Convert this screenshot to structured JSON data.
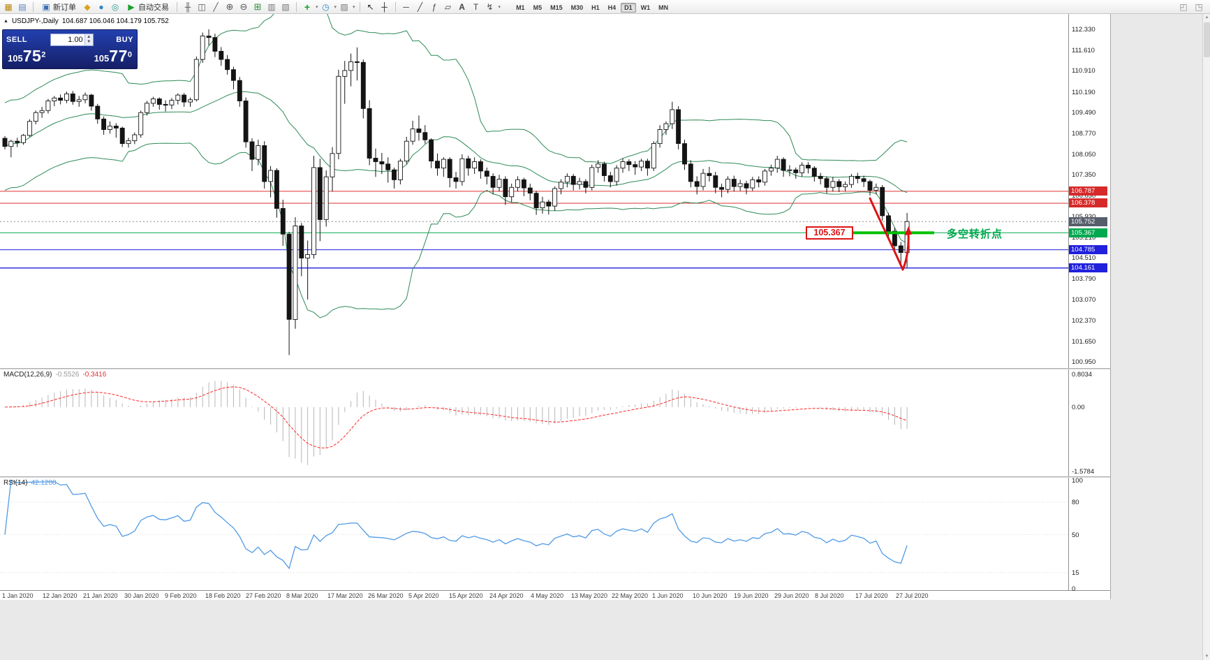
{
  "icons": {
    "new_chart": "▦",
    "profiles": "▤",
    "new_order": "▣",
    "metaeditor": "◆",
    "terminal": "●",
    "tester": "◎",
    "autotrade_play": "▶",
    "bars": "╫",
    "candles": "◫",
    "line_chart": "╱",
    "zoom_in": "⊕",
    "zoom_out": "⊖",
    "tile": "⊞",
    "indicator_list": "▥",
    "objects": "▧",
    "indicator_add": "+",
    "clock": "◷",
    "templates": "▨",
    "cursor": "↖",
    "crosshair": "┼",
    "hline": "─",
    "trendline": "╱",
    "fibonacci": "ƒ",
    "shapes": "▱",
    "text": "A",
    "label": "T",
    "arrows": "↯",
    "caret": "▾",
    "collapse": "▲",
    "win_a": "◰",
    "win_b": "◳",
    "scroll_up": "▲",
    "scroll_down": "▼"
  },
  "toolbar": {
    "new_order_label": "新订单",
    "auto_trading_label": "自动交易",
    "timeframes": [
      "M1",
      "M5",
      "M15",
      "M30",
      "H1",
      "H4",
      "D1",
      "W1",
      "MN"
    ],
    "active_timeframe": "D1"
  },
  "chart": {
    "symbol_title": "USDJPY-,Daily",
    "title_ohlc": "104.687 106.046 104.179 105.752",
    "trade_widget": {
      "sell_label": "SELL",
      "buy_label": "BUY",
      "volume": "1.00",
      "sell_price_prefix": "105",
      "sell_price_main": "75",
      "sell_price_sup": "2",
      "buy_price_prefix": "105",
      "buy_price_main": "77",
      "buy_price_sup": "0"
    }
  },
  "chart_data": {
    "type": "candlestick",
    "symbol": "USDJPY",
    "timeframe": "Daily",
    "last_ohlc": {
      "open": 104.687,
      "high": 106.046,
      "low": 104.179,
      "close": 105.752
    },
    "y_range": [
      100.95,
      112.856
    ],
    "y_ticks": [
      "112.330",
      "111.610",
      "110.910",
      "110.190",
      "109.490",
      "108.770",
      "108.050",
      "107.350",
      "106.630",
      "105.930",
      "105.210",
      "104.510",
      "103.790",
      "103.070",
      "102.370",
      "101.650",
      "100.950"
    ],
    "x_labels": [
      "1 Jan 2020",
      "12 Jan 2020",
      "21 Jan 2020",
      "30 Jan 2020",
      "9 Feb 2020",
      "18 Feb 2020",
      "27 Feb 2020",
      "8 Mar 2020",
      "17 Mar 2020",
      "26 Mar 2020",
      "5 Apr 2020",
      "15 Apr 2020",
      "24 Apr 2020",
      "4 May 2020",
      "13 May 2020",
      "22 May 2020",
      "1 Jun 2020",
      "10 Jun 2020",
      "19 Jun 2020",
      "29 Jun 2020",
      "8 Jul 2020",
      "17 Jul 2020",
      "27 Jul 2020"
    ],
    "overlays": {
      "bollinger": {
        "period": 20,
        "deviation": 2,
        "color": "#2e8b57"
      }
    },
    "hlines": [
      {
        "price": 106.787,
        "label": "106.787",
        "color": "#e03030",
        "box": "#d62a2a",
        "style": "solid"
      },
      {
        "price": 106.378,
        "label": "106.378",
        "color": "#e03030",
        "box": "#d62a2a",
        "style": "solid"
      },
      {
        "price": 105.752,
        "label": "105.752",
        "color": "#8a8f98",
        "box": "#565d6b",
        "style": "dot"
      },
      {
        "price": 105.367,
        "label": "105.367",
        "color": "#00a84f",
        "box": "#00a84f",
        "style": "solid"
      },
      {
        "price": 104.785,
        "label": "104.785",
        "color": "#2020dd",
        "box": "#2020dd",
        "style": "solid"
      },
      {
        "price": 104.161,
        "label": "104.161",
        "color": "#2020dd",
        "box": "#2020dd",
        "style": "solid"
      }
    ],
    "annotations": {
      "pivot_tag": "105.367",
      "pivot_text": "多空转折点",
      "pivot_price": 105.367,
      "tag_color": "#dd1414",
      "text_color": "#00a84f",
      "segment_color": "#00c000",
      "arrow_color": "#dd1414"
    },
    "indicators": [
      {
        "name": "MACD",
        "label": "MACD(12,26,9)",
        "value_main": "-0.5526",
        "value_signal": "-0.3416",
        "fast": 12,
        "slow": 26,
        "signal": 9,
        "y_ticks": [
          "0.8034",
          "0.00",
          "-1.5784"
        ],
        "y_tick_values": [
          0.8034,
          0,
          -1.5784
        ],
        "histogram_color": "#b6b6b6",
        "signal_color": "#ff2626"
      },
      {
        "name": "RSI",
        "label": "RSI(14)",
        "value": "42.1200",
        "period": 14,
        "levels": [
          80,
          50,
          15
        ],
        "y_ticks": [
          "100",
          "80",
          "50",
          "15",
          "0"
        ],
        "y_tick_values": [
          100,
          80,
          50,
          15,
          0
        ],
        "line_color": "#509ae6"
      }
    ],
    "candles": [
      [
        108.6,
        108.68,
        108.22,
        108.32
      ],
      [
        108.32,
        108.55,
        107.95,
        108.5
      ],
      [
        108.5,
        108.62,
        108.3,
        108.45
      ],
      [
        108.45,
        108.75,
        108.38,
        108.7
      ],
      [
        108.7,
        109.25,
        108.65,
        109.18
      ],
      [
        109.18,
        109.55,
        109.08,
        109.48
      ],
      [
        109.48,
        109.68,
        109.3,
        109.55
      ],
      [
        109.55,
        109.95,
        109.45,
        109.88
      ],
      [
        109.88,
        110.05,
        109.7,
        109.98
      ],
      [
        109.98,
        110.1,
        109.76,
        109.9
      ],
      [
        109.9,
        110.2,
        109.8,
        110.12
      ],
      [
        110.12,
        110.22,
        109.75,
        109.86
      ],
      [
        109.86,
        110.05,
        109.68,
        109.92
      ],
      [
        109.92,
        110.17,
        109.8,
        110.08
      ],
      [
        110.08,
        110.12,
        109.55,
        109.7
      ],
      [
        109.7,
        109.78,
        109.1,
        109.26
      ],
      [
        109.26,
        109.35,
        108.72,
        108.9
      ],
      [
        108.9,
        109.18,
        108.76,
        109.02
      ],
      [
        109.02,
        109.12,
        108.62,
        108.95
      ],
      [
        108.95,
        109.0,
        108.3,
        108.42
      ],
      [
        108.42,
        108.62,
        108.28,
        108.52
      ],
      [
        108.52,
        108.8,
        108.4,
        108.72
      ],
      [
        108.72,
        109.55,
        108.62,
        109.48
      ],
      [
        109.48,
        109.88,
        109.38,
        109.8
      ],
      [
        109.8,
        110.02,
        109.68,
        109.95
      ],
      [
        109.95,
        110.0,
        109.58,
        109.76
      ],
      [
        109.76,
        109.9,
        109.52,
        109.74
      ],
      [
        109.74,
        109.98,
        109.6,
        109.9
      ],
      [
        109.9,
        110.14,
        109.76,
        110.08
      ],
      [
        110.08,
        110.15,
        109.68,
        109.84
      ],
      [
        109.84,
        110.0,
        109.68,
        109.92
      ],
      [
        109.92,
        111.4,
        109.86,
        111.3
      ],
      [
        111.3,
        112.22,
        111.18,
        112.1
      ],
      [
        112.1,
        112.33,
        111.78,
        112.05
      ],
      [
        112.05,
        112.18,
        111.38,
        111.58
      ],
      [
        111.58,
        111.72,
        111.08,
        111.3
      ],
      [
        111.3,
        111.45,
        110.78,
        110.95
      ],
      [
        110.95,
        111.05,
        110.28,
        110.58
      ],
      [
        110.58,
        110.7,
        109.68,
        109.88
      ],
      [
        109.88,
        110.0,
        108.28,
        108.48
      ],
      [
        108.48,
        108.6,
        107.48,
        107.88
      ],
      [
        107.88,
        108.55,
        107.68,
        108.35
      ],
      [
        108.35,
        108.5,
        106.88,
        107.12
      ],
      [
        107.12,
        107.65,
        106.58,
        107.5
      ],
      [
        107.5,
        107.58,
        105.88,
        106.2
      ],
      [
        106.2,
        106.5,
        104.92,
        105.32
      ],
      [
        105.32,
        105.4,
        101.18,
        102.4
      ],
      [
        102.4,
        105.9,
        102.08,
        105.6
      ],
      [
        105.6,
        105.7,
        103.88,
        104.5
      ],
      [
        104.5,
        105.1,
        103.08,
        104.62
      ],
      [
        104.62,
        108.0,
        104.48,
        107.6
      ],
      [
        107.6,
        107.9,
        105.08,
        105.82
      ],
      [
        105.82,
        107.5,
        105.58,
        107.28
      ],
      [
        107.28,
        108.3,
        106.78,
        108.08
      ],
      [
        108.08,
        110.95,
        107.88,
        110.72
      ],
      [
        110.72,
        111.25,
        109.78,
        110.92
      ],
      [
        110.92,
        111.5,
        110.38,
        111.22
      ],
      [
        111.22,
        111.71,
        110.58,
        111.2
      ],
      [
        111.2,
        111.3,
        109.28,
        109.62
      ],
      [
        109.62,
        109.9,
        107.68,
        107.92
      ],
      [
        107.92,
        108.25,
        107.28,
        107.8
      ],
      [
        107.8,
        108.1,
        107.38,
        107.72
      ],
      [
        107.72,
        107.95,
        107.08,
        107.52
      ],
      [
        107.52,
        107.6,
        106.88,
        107.18
      ],
      [
        107.18,
        107.9,
        107.02,
        107.82
      ],
      [
        107.82,
        108.65,
        107.72,
        108.5
      ],
      [
        108.5,
        109.2,
        108.38,
        108.92
      ],
      [
        108.92,
        109.38,
        108.52,
        108.8
      ],
      [
        108.8,
        109.05,
        108.42,
        108.55
      ],
      [
        108.55,
        108.6,
        107.58,
        107.82
      ],
      [
        107.82,
        108.08,
        107.32,
        107.58
      ],
      [
        107.58,
        107.95,
        107.28,
        107.88
      ],
      [
        107.88,
        107.95,
        106.92,
        107.25
      ],
      [
        107.25,
        107.45,
        106.88,
        107.12
      ],
      [
        107.12,
        108.05,
        106.98,
        107.9
      ],
      [
        107.9,
        108.0,
        107.32,
        107.58
      ],
      [
        107.58,
        107.95,
        107.38,
        107.8
      ],
      [
        107.8,
        107.88,
        107.22,
        107.48
      ],
      [
        107.48,
        107.6,
        107.02,
        107.3
      ],
      [
        107.3,
        107.4,
        106.68,
        106.92
      ],
      [
        106.92,
        107.35,
        106.78,
        107.2
      ],
      [
        107.2,
        107.3,
        106.32,
        106.6
      ],
      [
        106.6,
        107.05,
        106.42,
        106.92
      ],
      [
        106.92,
        107.3,
        106.78,
        107.18
      ],
      [
        107.18,
        107.25,
        106.62,
        106.9
      ],
      [
        106.9,
        107.05,
        106.48,
        106.72
      ],
      [
        106.72,
        106.8,
        105.98,
        106.22
      ],
      [
        106.22,
        106.6,
        106.02,
        106.42
      ],
      [
        106.42,
        106.5,
        105.99,
        106.28
      ],
      [
        106.28,
        106.95,
        106.12,
        106.88
      ],
      [
        106.88,
        107.2,
        106.68,
        107.1
      ],
      [
        107.1,
        107.4,
        106.92,
        107.3
      ],
      [
        107.3,
        107.38,
        106.82,
        107.02
      ],
      [
        107.02,
        107.25,
        106.85,
        107.12
      ],
      [
        107.12,
        107.2,
        106.72,
        106.92
      ],
      [
        106.92,
        107.7,
        106.82,
        107.6
      ],
      [
        107.6,
        107.85,
        107.42,
        107.72
      ],
      [
        107.72,
        107.8,
        107.12,
        107.32
      ],
      [
        107.32,
        107.45,
        106.92,
        107.12
      ],
      [
        107.12,
        107.68,
        106.98,
        107.58
      ],
      [
        107.58,
        107.92,
        107.42,
        107.8
      ],
      [
        107.8,
        107.88,
        107.48,
        107.7
      ],
      [
        107.7,
        107.82,
        107.35,
        107.62
      ],
      [
        107.62,
        107.9,
        107.48,
        107.82
      ],
      [
        107.82,
        107.9,
        107.32,
        107.58
      ],
      [
        107.58,
        108.5,
        107.48,
        108.42
      ],
      [
        108.42,
        109.05,
        108.28,
        108.9
      ],
      [
        108.9,
        109.18,
        108.72,
        109.1
      ],
      [
        109.1,
        109.85,
        108.92,
        109.58
      ],
      [
        109.58,
        109.7,
        108.22,
        108.42
      ],
      [
        108.42,
        108.55,
        107.52,
        107.72
      ],
      [
        107.72,
        107.85,
        106.92,
        107.12
      ],
      [
        107.12,
        107.3,
        106.68,
        106.95
      ],
      [
        106.95,
        107.55,
        106.82,
        107.4
      ],
      [
        107.4,
        107.62,
        107.12,
        107.32
      ],
      [
        107.32,
        107.45,
        106.72,
        106.92
      ],
      [
        106.92,
        107.05,
        106.58,
        106.85
      ],
      [
        106.85,
        107.3,
        106.72,
        107.2
      ],
      [
        107.2,
        107.32,
        106.78,
        106.95
      ],
      [
        106.95,
        107.18,
        106.8,
        107.05
      ],
      [
        107.05,
        107.15,
        106.68,
        106.9
      ],
      [
        106.9,
        107.28,
        106.8,
        107.18
      ],
      [
        107.18,
        107.3,
        106.92,
        107.1
      ],
      [
        107.1,
        107.55,
        106.98,
        107.48
      ],
      [
        107.48,
        107.7,
        107.32,
        107.58
      ],
      [
        107.58,
        108.0,
        107.42,
        107.88
      ],
      [
        107.88,
        107.95,
        107.28,
        107.5
      ],
      [
        107.5,
        107.68,
        107.3,
        107.52
      ],
      [
        107.52,
        107.6,
        107.22,
        107.42
      ],
      [
        107.42,
        107.78,
        107.28,
        107.68
      ],
      [
        107.68,
        107.78,
        107.4,
        107.58
      ],
      [
        107.58,
        107.65,
        107.12,
        107.3
      ],
      [
        107.3,
        107.42,
        107.02,
        107.22
      ],
      [
        107.22,
        107.3,
        106.72,
        106.92
      ],
      [
        106.92,
        107.28,
        106.78,
        107.12
      ],
      [
        107.12,
        107.2,
        106.76,
        106.94
      ],
      [
        106.94,
        107.12,
        106.78,
        107.02
      ],
      [
        107.02,
        107.38,
        106.9,
        107.3
      ],
      [
        107.3,
        107.42,
        107.06,
        107.22
      ],
      [
        107.22,
        107.32,
        106.93,
        107.12
      ],
      [
        107.12,
        107.18,
        106.64,
        106.82
      ],
      [
        106.82,
        107.05,
        106.68,
        106.92
      ],
      [
        106.92,
        107.0,
        105.78,
        105.95
      ],
      [
        105.95,
        106.05,
        105.18,
        105.42
      ],
      [
        105.42,
        105.55,
        104.73,
        104.92
      ],
      [
        104.92,
        105.05,
        104.28,
        104.69
      ],
      [
        104.687,
        106.046,
        104.179,
        105.752
      ]
    ]
  }
}
